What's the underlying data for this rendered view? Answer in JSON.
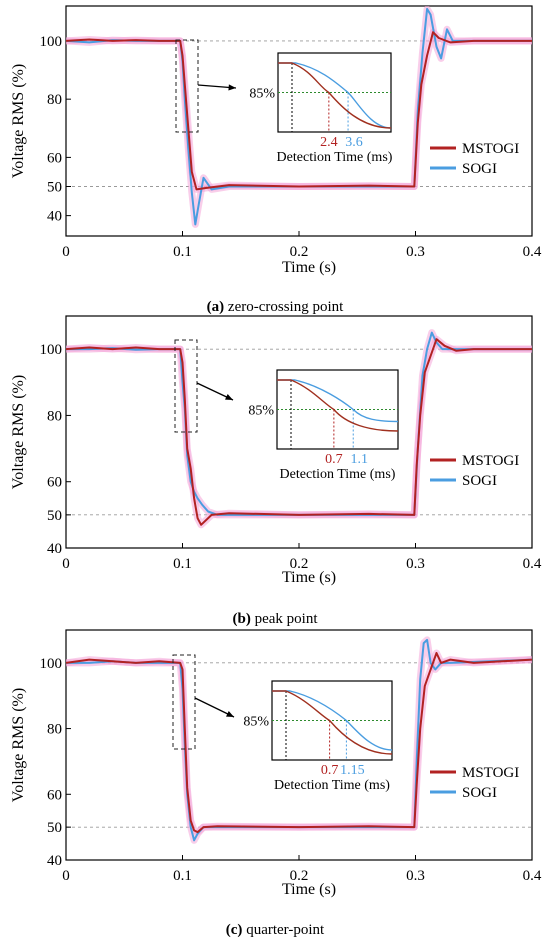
{
  "chart_data": [
    {
      "type": "line",
      "caption_label": "(a)",
      "caption_text": " zero-crossing point",
      "xlabel": "Time (s)",
      "ylabel": "Voltage RMS (%)",
      "xlim": [
        0,
        0.4
      ],
      "ylim": [
        33,
        112
      ],
      "xticks": [
        0,
        0.1,
        0.2,
        0.3,
        0.4
      ],
      "xtick_labels": [
        "0",
        "0.1",
        "0.2",
        "0.3",
        "0.4"
      ],
      "yticks": [
        40,
        50,
        60,
        80,
        100
      ],
      "ytick_labels": [
        "40",
        "50",
        "60",
        "80",
        "100"
      ],
      "reference_lines": [
        100,
        50
      ],
      "legend_position": "right",
      "series": [
        {
          "name": "MSTOGI",
          "color": "#b22222",
          "x": [
            0,
            0.02,
            0.04,
            0.06,
            0.08,
            0.098,
            0.1,
            0.102,
            0.105,
            0.108,
            0.112,
            0.12,
            0.14,
            0.2,
            0.26,
            0.299,
            0.302,
            0.305,
            0.31,
            0.315,
            0.32,
            0.33,
            0.35,
            0.4
          ],
          "y": [
            100,
            100.5,
            100,
            100.3,
            100,
            100,
            95,
            85,
            70,
            55,
            49,
            49.5,
            50.5,
            50,
            50.3,
            50,
            72,
            85,
            95,
            103,
            101,
            99.5,
            100,
            100
          ]
        },
        {
          "name": "SOGI",
          "color": "#4a9de0",
          "x": [
            0,
            0.02,
            0.04,
            0.06,
            0.08,
            0.098,
            0.1,
            0.102,
            0.105,
            0.108,
            0.111,
            0.114,
            0.118,
            0.125,
            0.14,
            0.2,
            0.26,
            0.299,
            0.302,
            0.306,
            0.31,
            0.313,
            0.318,
            0.322,
            0.327,
            0.332,
            0.34,
            0.4
          ],
          "y": [
            100,
            99.5,
            100.3,
            100,
            100,
            100,
            93,
            80,
            63,
            48,
            37,
            44,
            53,
            49,
            50,
            50,
            50,
            50,
            76,
            96,
            111,
            109,
            98,
            94,
            104,
            100,
            100,
            100
          ]
        }
      ],
      "inset": {
        "label": "85%",
        "xlabel": "Detection Time (ms)",
        "marks": [
          {
            "value": "2.4",
            "color": "#b22222"
          },
          {
            "value": "3.6",
            "color": "#4a9de0"
          }
        ]
      }
    },
    {
      "type": "line",
      "caption_label": "(b)",
      "caption_text": " peak point",
      "xlabel": "Time (s)",
      "ylabel": "Voltage RMS (%)",
      "xlim": [
        0,
        0.4
      ],
      "ylim": [
        40,
        110
      ],
      "xticks": [
        0,
        0.1,
        0.2,
        0.3,
        0.4
      ],
      "xtick_labels": [
        "0",
        "0.1",
        "0.2",
        "0.3",
        "0.4"
      ],
      "yticks": [
        40,
        50,
        60,
        80,
        100
      ],
      "ytick_labels": [
        "40",
        "50",
        "60",
        "80",
        "100"
      ],
      "reference_lines": [
        100,
        50
      ],
      "legend_position": "right",
      "series": [
        {
          "name": "MSTOGI",
          "color": "#b22222",
          "x": [
            0,
            0.02,
            0.04,
            0.06,
            0.08,
            0.098,
            0.1,
            0.102,
            0.104,
            0.107,
            0.11,
            0.113,
            0.116,
            0.125,
            0.14,
            0.2,
            0.26,
            0.299,
            0.301,
            0.304,
            0.308,
            0.312,
            0.318,
            0.325,
            0.335,
            0.35,
            0.4
          ],
          "y": [
            100,
            100.5,
            100,
            100.5,
            100,
            100,
            96,
            85,
            70,
            64,
            55,
            49,
            47,
            50,
            50.5,
            50,
            50.3,
            50,
            65,
            80,
            93,
            97,
            103,
            101,
            99.5,
            100,
            100
          ]
        },
        {
          "name": "SOGI",
          "color": "#4a9de0",
          "x": [
            0,
            0.02,
            0.04,
            0.06,
            0.08,
            0.098,
            0.1,
            0.102,
            0.104,
            0.107,
            0.11,
            0.113,
            0.117,
            0.122,
            0.13,
            0.2,
            0.26,
            0.299,
            0.302,
            0.306,
            0.31,
            0.314,
            0.318,
            0.323,
            0.33,
            0.4
          ],
          "y": [
            100,
            100,
            100.3,
            99.8,
            100,
            100,
            90,
            82,
            68,
            60,
            57,
            55,
            53,
            51,
            50,
            50,
            50,
            50,
            70,
            92,
            100,
            105,
            102,
            100,
            100,
            100
          ]
        }
      ],
      "inset": {
        "label": "85%",
        "xlabel": "Detection Time (ms)",
        "marks": [
          {
            "value": "0.7",
            "color": "#b22222"
          },
          {
            "value": "1.1",
            "color": "#4a9de0"
          }
        ]
      }
    },
    {
      "type": "line",
      "caption_label": "(c)",
      "caption_text": " quarter-point",
      "xlabel": "Time (s)",
      "ylabel": "Voltage RMS (%)",
      "xlim": [
        0,
        0.4
      ],
      "ylim": [
        40,
        110
      ],
      "xticks": [
        0,
        0.1,
        0.2,
        0.3,
        0.4
      ],
      "xtick_labels": [
        "0",
        "0.1",
        "0.2",
        "0.3",
        "0.4"
      ],
      "yticks": [
        40,
        50,
        60,
        80,
        100
      ],
      "ytick_labels": [
        "40",
        "50",
        "60",
        "80",
        "100"
      ],
      "reference_lines": [
        100,
        50
      ],
      "legend_position": "right",
      "series": [
        {
          "name": "MSTOGI",
          "color": "#b22222",
          "x": [
            0,
            0.02,
            0.04,
            0.06,
            0.08,
            0.098,
            0.1,
            0.102,
            0.104,
            0.107,
            0.11,
            0.113,
            0.118,
            0.13,
            0.2,
            0.26,
            0.299,
            0.301,
            0.304,
            0.308,
            0.312,
            0.318,
            0.322,
            0.33,
            0.35,
            0.4
          ],
          "y": [
            100,
            101,
            100.5,
            100,
            100.5,
            100,
            98,
            80,
            62,
            52,
            49,
            48.5,
            50,
            50.3,
            50,
            50.3,
            50,
            63,
            80,
            93,
            97,
            103,
            100,
            101,
            100,
            101
          ]
        },
        {
          "name": "SOGI",
          "color": "#4a9de0",
          "x": [
            0,
            0.02,
            0.04,
            0.06,
            0.08,
            0.098,
            0.1,
            0.102,
            0.104,
            0.107,
            0.11,
            0.113,
            0.118,
            0.125,
            0.2,
            0.26,
            0.299,
            0.301,
            0.304,
            0.307,
            0.31,
            0.313,
            0.317,
            0.322,
            0.33,
            0.4
          ],
          "y": [
            100,
            100,
            100.5,
            100,
            100,
            100,
            92,
            75,
            60,
            50,
            46,
            48,
            50,
            50,
            50,
            50,
            50,
            70,
            95,
            106,
            107,
            100,
            98,
            100,
            100,
            101
          ]
        }
      ],
      "inset": {
        "label": "85%",
        "xlabel": "Detection Time (ms)",
        "marks": [
          {
            "value": "0.7",
            "color": "#b22222"
          },
          {
            "value": "1.15",
            "color": "#4a9de0"
          }
        ]
      }
    }
  ]
}
